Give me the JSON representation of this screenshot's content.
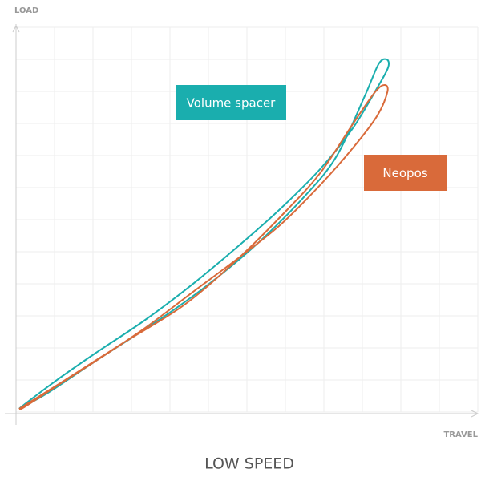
{
  "chart_data": {
    "type": "line",
    "title": "LOW SPEED",
    "xlabel": "TRAVEL",
    "ylabel": "LOAD",
    "xlim": [
      0,
      12
    ],
    "ylim": [
      0,
      12
    ],
    "xticks": [
      0,
      1,
      2,
      3,
      4,
      5,
      6,
      7,
      8,
      9,
      10,
      11,
      12
    ],
    "yticks": [
      0,
      1,
      2,
      3,
      4,
      5,
      6,
      7,
      8,
      9,
      10,
      11,
      12
    ],
    "grid": true,
    "series": [
      {
        "name": "Volume spacer",
        "color": "#1aaeae",
        "x": [
          0.08,
          0.83,
          2.08,
          3.75,
          5,
          6.25,
          7.5,
          8.33,
          9.06,
          9.42,
          9.63,
          9.67,
          9.38,
          8.75,
          7.92,
          6.88,
          5.83,
          4.58,
          3.33,
          2.08,
          1.04,
          0.21,
          0.08
        ],
        "values": [
          0.1,
          0.6,
          1.6,
          2.9,
          3.98,
          5.23,
          6.73,
          7.98,
          9.85,
          10.85,
          11,
          10.75,
          10.1,
          8.85,
          7.6,
          6.35,
          5.23,
          3.98,
          2.85,
          1.85,
          0.98,
          0.23,
          0.1
        ]
      },
      {
        "name": "Neopos",
        "color": "#d96a3a",
        "x": [
          0.08,
          1.25,
          2.71,
          4.38,
          5.83,
          7.08,
          7.92,
          8.75,
          9.33,
          9.58,
          9.65,
          9.38,
          8.75,
          7.92,
          6.88,
          5.83,
          4.58,
          3.33,
          2.08,
          1.04,
          0.21,
          0.08
        ],
        "values": [
          0.1,
          0.98,
          2.1,
          3.35,
          4.85,
          6.35,
          7.48,
          8.98,
          9.98,
          10.2,
          9.98,
          9.23,
          8.23,
          7.1,
          5.85,
          4.85,
          3.73,
          2.6,
          1.6,
          0.8,
          0.15,
          0.1
        ]
      }
    ]
  }
}
